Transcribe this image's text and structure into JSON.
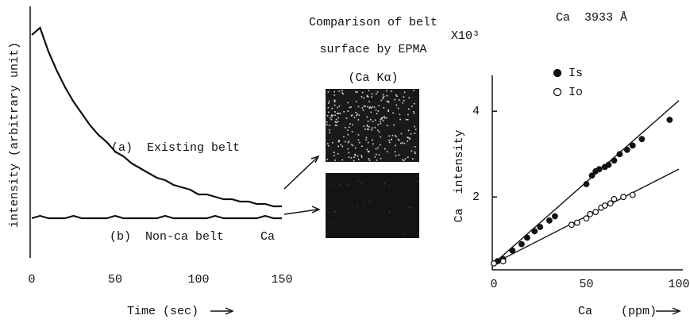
{
  "chart_data": [
    {
      "type": "line",
      "x_label": "Time (sec)",
      "y_label": "intensity (arbitrary unit)",
      "annotation": "Ca",
      "x": [
        0,
        5,
        10,
        15,
        20,
        25,
        30,
        35,
        40,
        45,
        50,
        55,
        60,
        65,
        70,
        75,
        80,
        85,
        90,
        95,
        100,
        105,
        110,
        115,
        120,
        125,
        130,
        135,
        140,
        145,
        150
      ],
      "series": [
        {
          "name": "(a)  Existing belt",
          "color": "#111111",
          "values": [
            92,
            95,
            85,
            77,
            70,
            64,
            59,
            54,
            50,
            47,
            43,
            41,
            38,
            36,
            34,
            32,
            31,
            29,
            28,
            27,
            25,
            25,
            24,
            23,
            23,
            22,
            22,
            21,
            21,
            20,
            20
          ]
        },
        {
          "name": "(b)  Non-ca belt",
          "color": "#111111",
          "values": [
            15,
            16,
            15,
            15,
            15,
            16,
            15,
            15,
            15,
            15,
            16,
            15,
            15,
            15,
            15,
            15,
            16,
            15,
            15,
            15,
            15,
            15,
            16,
            15,
            15,
            15,
            15,
            15,
            16,
            15,
            15
          ]
        }
      ],
      "xlim": [
        0,
        150
      ],
      "xticks": [
        0,
        50,
        100,
        150
      ],
      "ylim": [
        0,
        100
      ]
    },
    {
      "type": "scatter",
      "title": "Ca  3933 Å",
      "y_multiplier": "X10³",
      "x_label": "Ca    (ppm)",
      "y_label": "Ca  intensity",
      "series": [
        {
          "name": "Is",
          "marker": "filled",
          "color": "#111111",
          "x": [
            0,
            2,
            5,
            10,
            15,
            18,
            22,
            25,
            30,
            33,
            50,
            53,
            55,
            57,
            60,
            62,
            65,
            68,
            72,
            75,
            80,
            95
          ],
          "values": [
            0.45,
            0.5,
            0.55,
            0.75,
            0.9,
            1.05,
            1.2,
            1.3,
            1.45,
            1.55,
            2.3,
            2.5,
            2.6,
            2.65,
            2.7,
            2.75,
            2.85,
            3.0,
            3.1,
            3.2,
            3.35,
            3.8
          ]
        },
        {
          "name": "Io",
          "marker": "open",
          "color": "#111111",
          "x": [
            0,
            5,
            42,
            45,
            50,
            52,
            55,
            58,
            60,
            63,
            65,
            70,
            75
          ],
          "values": [
            0.45,
            0.5,
            1.35,
            1.4,
            1.5,
            1.6,
            1.65,
            1.75,
            1.8,
            1.85,
            1.95,
            2.0,
            2.05
          ]
        }
      ],
      "fit_lines": [
        {
          "x": [
            0,
            100
          ],
          "y": [
            0.45,
            4.25
          ]
        },
        {
          "x": [
            0,
            100
          ],
          "y": [
            0.45,
            2.65
          ]
        }
      ],
      "xlim": [
        0,
        100
      ],
      "xticks": [
        0,
        50,
        100
      ],
      "ylim": [
        0.3,
        4.8
      ],
      "yticks": [
        2,
        4
      ]
    }
  ],
  "figure_text": {
    "caption_lines": [
      "Comparison of belt",
      "surface by EPMA"
    ],
    "image_label": "(Ca Kα)"
  }
}
